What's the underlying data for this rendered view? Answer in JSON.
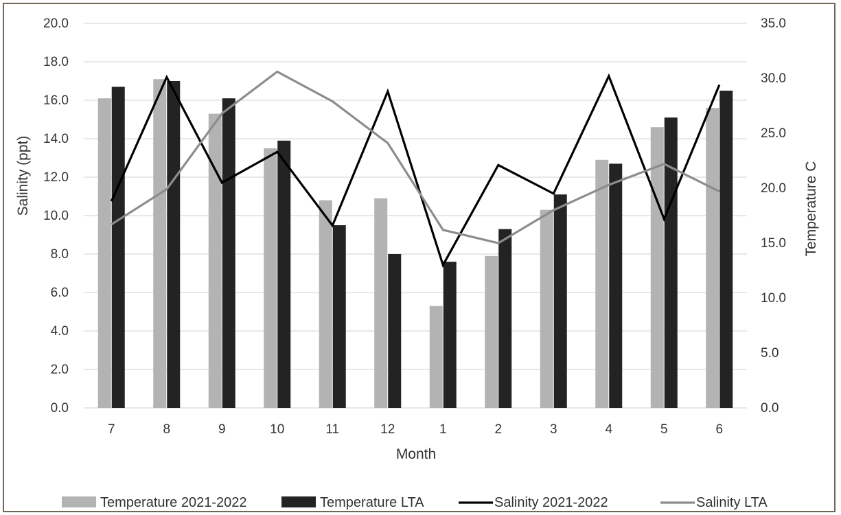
{
  "chart_data": {
    "type": "bar",
    "title": "",
    "xlabel": "Month",
    "ylabel_left": "Salinity (ppt)",
    "ylabel_right": "Temperature C",
    "categories": [
      "7",
      "8",
      "9",
      "10",
      "11",
      "12",
      "1",
      "2",
      "3",
      "4",
      "5",
      "6"
    ],
    "ylim_left": [
      0,
      20
    ],
    "ylim_right": [
      0,
      35
    ],
    "yticks_left": [
      "0.0",
      "2.0",
      "4.0",
      "6.0",
      "8.0",
      "10.0",
      "12.0",
      "14.0",
      "16.0",
      "18.0",
      "20.0"
    ],
    "yticks_right": [
      "0.0",
      "5.0",
      "10.0",
      "15.0",
      "20.0",
      "25.0",
      "30.0",
      "35.0"
    ],
    "grid": true,
    "legend_position": "bottom",
    "series": [
      {
        "name": "Temperature 2021-2022",
        "type": "bar",
        "axis": "left",
        "color": "#b3b3b3",
        "values": [
          16.1,
          17.1,
          15.3,
          13.5,
          10.8,
          10.9,
          5.3,
          7.9,
          10.3,
          12.9,
          14.6,
          15.6
        ]
      },
      {
        "name": "Temperature LTA",
        "type": "bar",
        "axis": "left",
        "color": "#232323",
        "values": [
          16.7,
          17.0,
          16.1,
          13.9,
          9.5,
          8.0,
          7.6,
          9.3,
          11.1,
          12.7,
          15.1,
          16.5
        ]
      },
      {
        "name": "Salinity 2021-2022",
        "type": "line",
        "axis": "right",
        "color": "#000000",
        "values": [
          18.8,
          30.1,
          20.5,
          23.3,
          16.6,
          28.8,
          13.0,
          22.1,
          19.5,
          30.2,
          17.2,
          29.4
        ]
      },
      {
        "name": "Salinity LTA",
        "type": "line",
        "axis": "right",
        "color": "#8c8c8c",
        "values": [
          16.7,
          19.9,
          26.8,
          30.6,
          27.9,
          24.1,
          16.2,
          15.0,
          18.0,
          20.3,
          22.2,
          19.7
        ]
      }
    ]
  }
}
